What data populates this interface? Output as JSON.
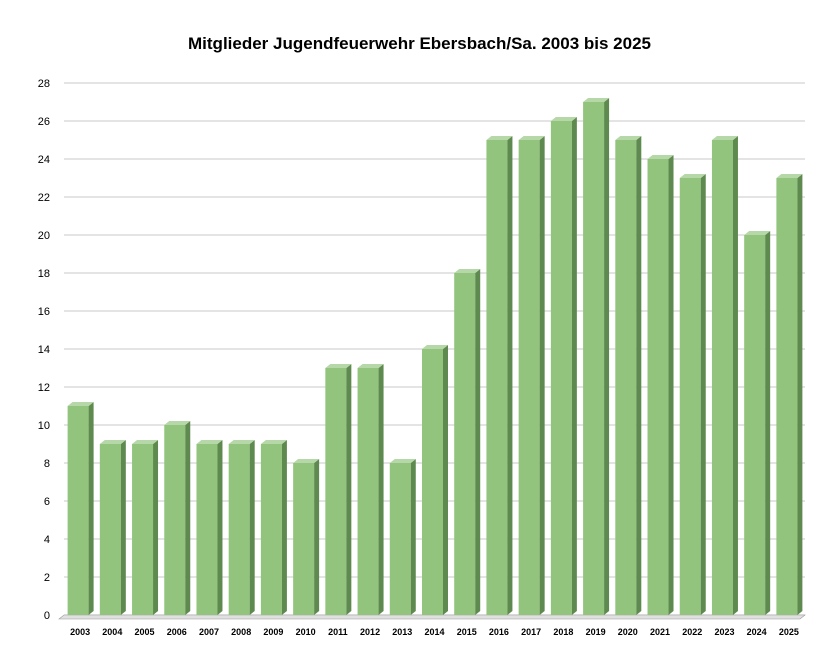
{
  "colors": {
    "bar_front": "#93c47d",
    "bar_side": "#5f8a4f",
    "bar_top": "#b6d7a8",
    "grid": "#c8c8c8",
    "axis": "#000000"
  },
  "chart_data": {
    "type": "bar",
    "title": "Mitglieder Jugendfeuerwehr Ebersbach/Sa. 2003 bis 2025",
    "xlabel": "",
    "ylabel": "",
    "ylim": [
      0,
      28
    ],
    "yticks": [
      0,
      2,
      4,
      6,
      8,
      10,
      12,
      14,
      16,
      18,
      20,
      22,
      24,
      26,
      28
    ],
    "grid": true,
    "legend": "none",
    "categories": [
      "2003",
      "2004",
      "2005",
      "2006",
      "2007",
      "2008",
      "2009",
      "2010",
      "2011",
      "2012",
      "2013",
      "2014",
      "2015",
      "2016",
      "2017",
      "2018",
      "2019",
      "2020",
      "2021",
      "2022",
      "2023",
      "2024",
      "2025"
    ],
    "values": [
      11,
      9,
      9,
      10,
      9,
      9,
      9,
      8,
      13,
      13,
      8,
      14,
      18,
      25,
      25,
      26,
      27,
      25,
      24,
      23,
      25,
      20,
      23
    ]
  }
}
